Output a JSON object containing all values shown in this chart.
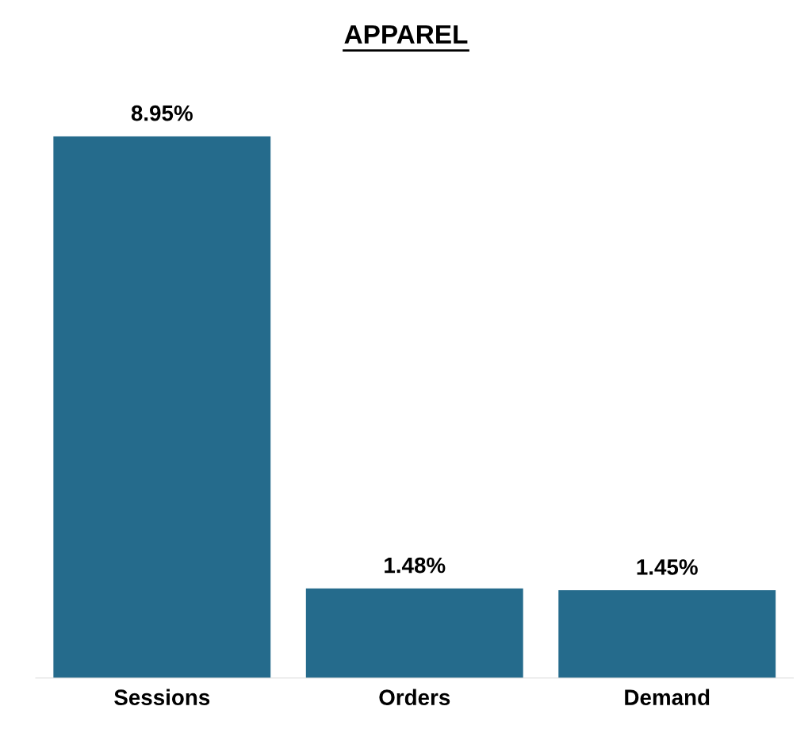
{
  "chart_data": {
    "type": "bar",
    "title": "APPAREL",
    "categories": [
      "Sessions",
      "Orders",
      "Demand"
    ],
    "values": [
      8.95,
      1.48,
      1.45
    ],
    "value_labels": [
      "8.95%",
      "1.48%",
      "1.45%"
    ],
    "color": "#256b8c",
    "tick_labels": "x",
    "grid": false,
    "legend": false
  }
}
